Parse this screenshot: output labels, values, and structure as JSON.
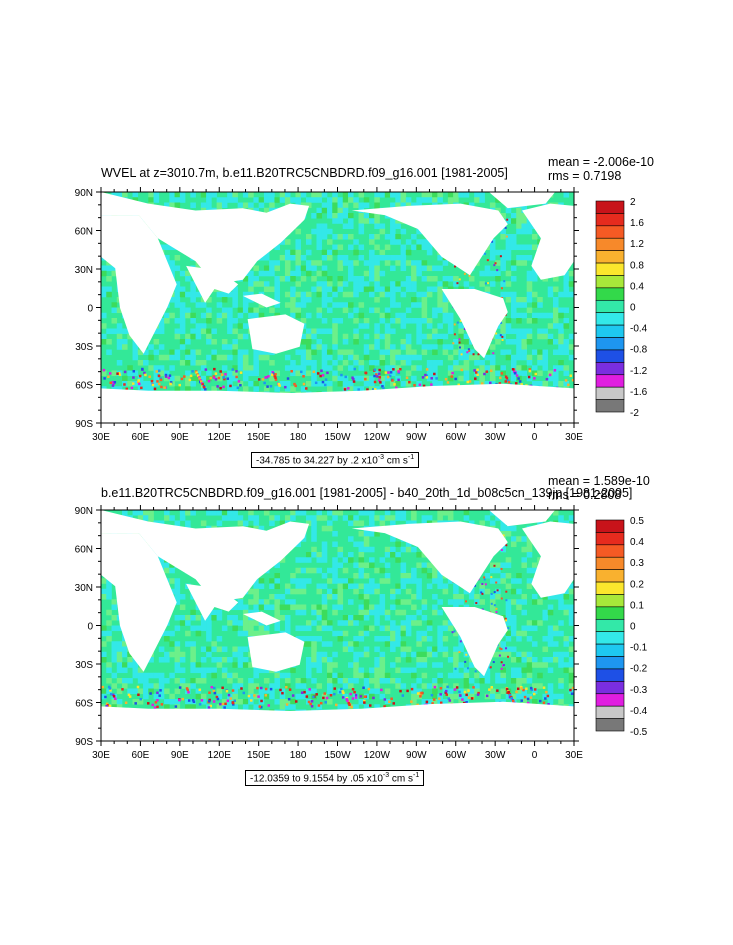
{
  "chart_data": [
    {
      "type": "heatmap",
      "title": "WVEL at z=3010.7m, b.e11.B20TRC5CNBDRD.f09_g16.001 [1981-2005]",
      "stats": {
        "mean": "mean = -2.006e-10",
        "rms": "rms = 0.7198"
      },
      "range_text": {
        "prefix": "-34.785 to 34.227 by .2 x10",
        "exp": "-3",
        "units": " cm s",
        "units_exp": "-1"
      },
      "x_tick_labels": [
        "30E",
        "60E",
        "90E",
        "120E",
        "150E",
        "180",
        "150W",
        "120W",
        "90W",
        "60W",
        "30W",
        "0",
        "30E"
      ],
      "y_tick_labels": [
        "90N",
        "60N",
        "30N",
        "0",
        "30S",
        "60S",
        "90S"
      ],
      "colorbar_labels": [
        "2",
        "1.6",
        "1.2",
        "0.8",
        "0.4",
        "0",
        "-0.4",
        "-0.8",
        "-1.2",
        "-1.6",
        "-2"
      ],
      "colorbar_colors": [
        "#c8131a",
        "#e62b1e",
        "#f55a24",
        "#f7892a",
        "#f9b12f",
        "#fbe62d",
        "#a8e83a",
        "#33d94a",
        "#33e8a8",
        "#33e8e8",
        "#1ec8f0",
        "#1e96f0",
        "#1e50e6",
        "#7a2ee0",
        "#e01ee0",
        "#c8c8c8",
        "#787878"
      ],
      "xlim": [
        "30E",
        "30E"
      ],
      "ylim": [
        "90S",
        "90N"
      ]
    },
    {
      "type": "heatmap",
      "title": "b.e11.B20TRC5CNBDRD.f09_g16.001 [1981-2005] - b40_20th_1d_b08c5cn_139jp [1981-2005]",
      "stats": {
        "mean": "mean = 1.589e-10",
        "rms": "rms = 0.2808"
      },
      "range_text": {
        "prefix": "-12.0359 to 9.1554 by .05 x10",
        "exp": "-3",
        "units": " cm s",
        "units_exp": "-1"
      },
      "x_tick_labels": [
        "30E",
        "60E",
        "90E",
        "120E",
        "150E",
        "180",
        "150W",
        "120W",
        "90W",
        "60W",
        "30W",
        "0",
        "30E"
      ],
      "y_tick_labels": [
        "90N",
        "60N",
        "30N",
        "0",
        "30S",
        "60S",
        "90S"
      ],
      "colorbar_labels": [
        "0.5",
        "0.4",
        "0.3",
        "0.2",
        "0.1",
        "0",
        "-0.1",
        "-0.2",
        "-0.3",
        "-0.4",
        "-0.5"
      ],
      "colorbar_colors": [
        "#c8131a",
        "#e62b1e",
        "#f55a24",
        "#f7892a",
        "#f9b12f",
        "#fbe62d",
        "#a8e83a",
        "#33d94a",
        "#33e8a8",
        "#33e8e8",
        "#1ec8f0",
        "#1e96f0",
        "#1e50e6",
        "#7a2ee0",
        "#e01ee0",
        "#c8c8c8",
        "#787878"
      ],
      "xlim": [
        "30E",
        "30E"
      ],
      "ylim": [
        "90S",
        "90N"
      ]
    }
  ],
  "palette": {
    "ocean_base": "#33e898",
    "ocean_alt": "#3ff0c0",
    "land": "#ffffff",
    "frame": "#000000"
  }
}
